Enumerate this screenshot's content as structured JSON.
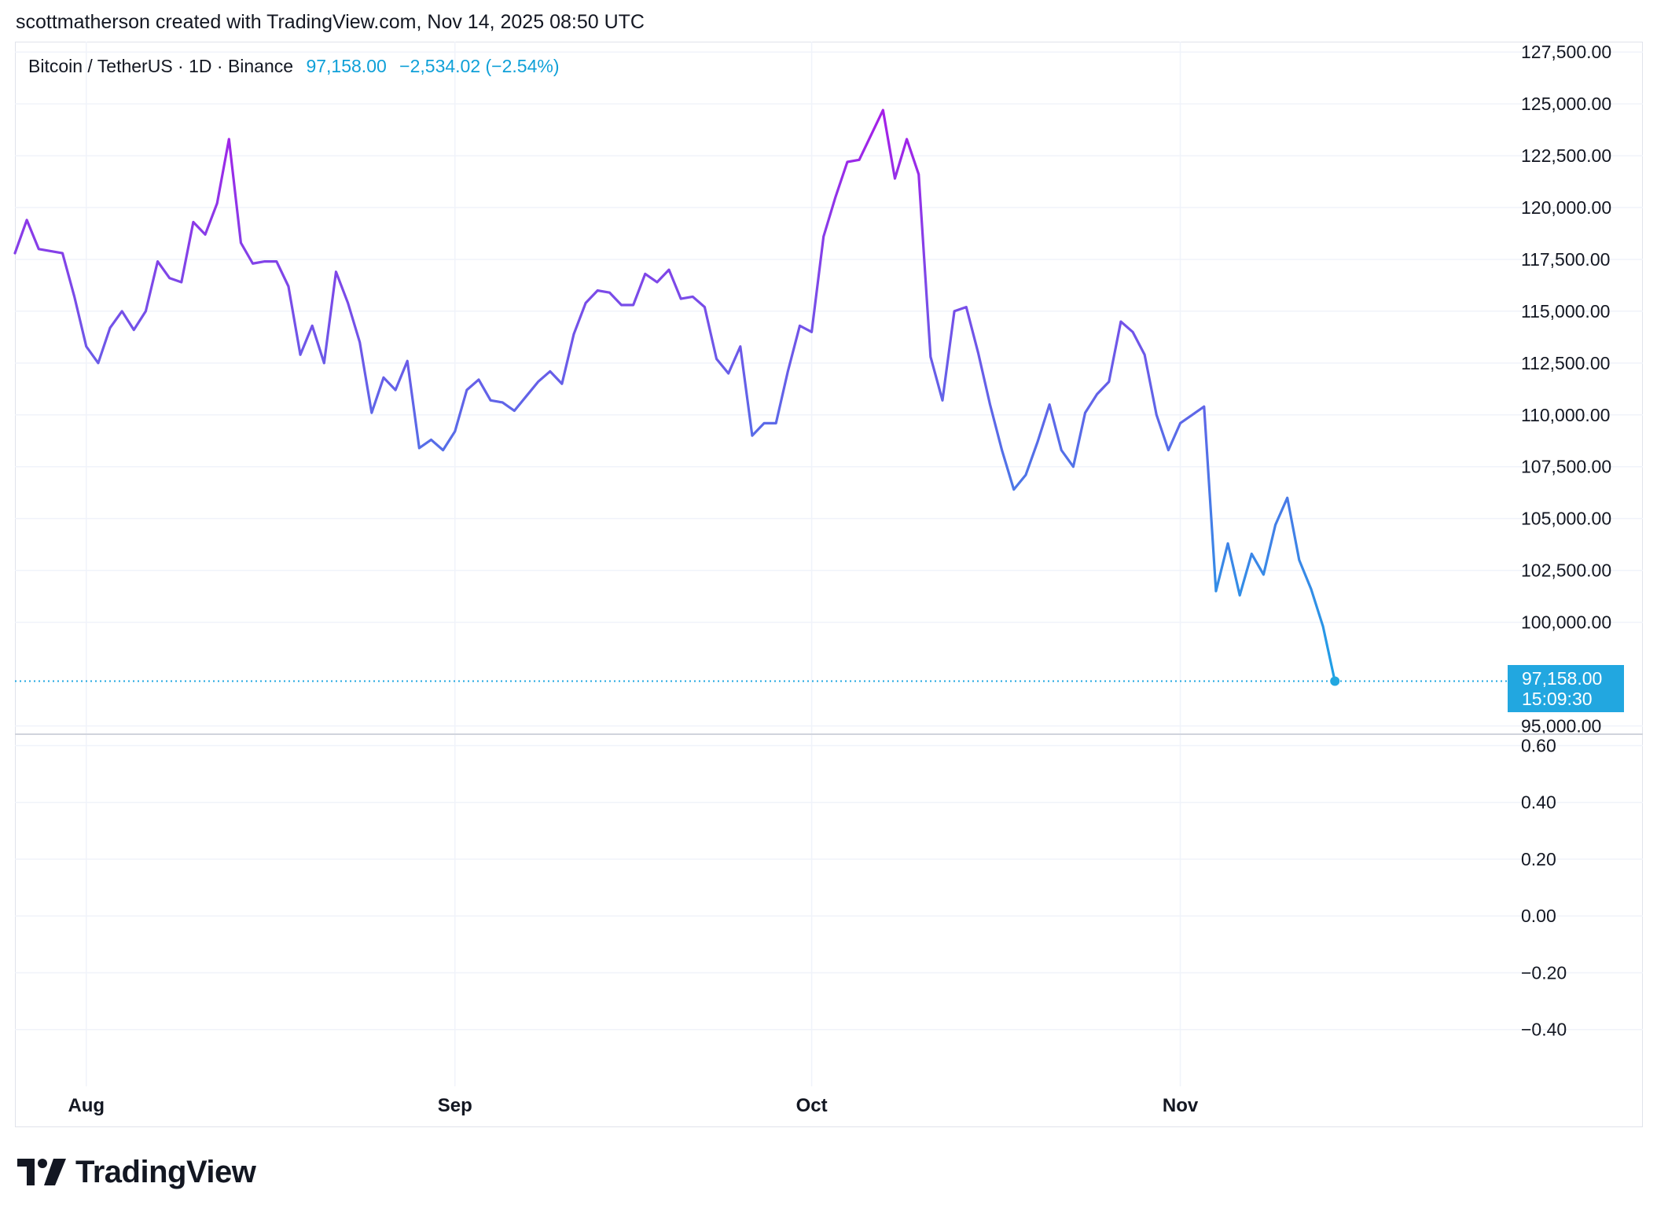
{
  "byline": "scottmatherson created with TradingView.com, Nov 14, 2025 08:50 UTC",
  "legend": {
    "symbol": "Bitcoin / TetherUS · 1D · Binance",
    "last": "97,158.00",
    "change": "−2,534.02 (−2.54%)"
  },
  "price_tag": {
    "price": "97,158.00",
    "countdown": "15:09:30"
  },
  "brand": {
    "name": "TradingView",
    "icon": "tradingview-logo-icon"
  },
  "colors": {
    "line_start": "#a61ee8",
    "line_mid": "#6a5ce8",
    "line_end": "#1ea0e6",
    "last_price": "#22a7e0"
  },
  "chart_data": [
    {
      "type": "line",
      "title": "Bitcoin / TetherUS · 1D · Binance",
      "x_tick_labels": [
        "Aug",
        "Sep",
        "Oct",
        "Nov"
      ],
      "x_tick_dates": [
        "2025-08-01",
        "2025-09-01",
        "2025-10-01",
        "2025-11-01"
      ],
      "x_range": [
        "2025-07-26",
        "2025-11-28"
      ],
      "y_tick_labels": [
        "127,500.00",
        "125,000.00",
        "122,500.00",
        "120,000.00",
        "117,500.00",
        "115,000.00",
        "112,500.00",
        "110,000.00",
        "107,500.00",
        "105,000.00",
        "102,500.00",
        "100,000.00",
        "95,000.00"
      ],
      "ylim": [
        94600,
        128000
      ],
      "grid": true,
      "last_value": 97158,
      "series": [
        {
          "x": [
            "2025-07-26",
            "2025-07-27",
            "2025-07-28",
            "2025-07-29",
            "2025-07-30",
            "2025-07-31",
            "2025-08-01",
            "2025-08-02",
            "2025-08-03",
            "2025-08-04",
            "2025-08-05",
            "2025-08-06",
            "2025-08-07",
            "2025-08-08",
            "2025-08-09",
            "2025-08-10",
            "2025-08-11",
            "2025-08-12",
            "2025-08-13",
            "2025-08-14",
            "2025-08-15",
            "2025-08-16",
            "2025-08-17",
            "2025-08-18",
            "2025-08-19",
            "2025-08-20",
            "2025-08-21",
            "2025-08-22",
            "2025-08-23",
            "2025-08-24",
            "2025-08-25",
            "2025-08-26",
            "2025-08-27",
            "2025-08-28",
            "2025-08-29",
            "2025-08-30",
            "2025-08-31",
            "2025-09-01",
            "2025-09-02",
            "2025-09-03",
            "2025-09-04",
            "2025-09-05",
            "2025-09-06",
            "2025-09-07",
            "2025-09-08",
            "2025-09-09",
            "2025-09-10",
            "2025-09-11",
            "2025-09-12",
            "2025-09-13",
            "2025-09-14",
            "2025-09-15",
            "2025-09-16",
            "2025-09-17",
            "2025-09-18",
            "2025-09-19",
            "2025-09-20",
            "2025-09-21",
            "2025-09-22",
            "2025-09-23",
            "2025-09-24",
            "2025-09-25",
            "2025-09-26",
            "2025-09-27",
            "2025-09-28",
            "2025-09-29",
            "2025-09-30",
            "2025-10-01",
            "2025-10-02",
            "2025-10-03",
            "2025-10-04",
            "2025-10-05",
            "2025-10-06",
            "2025-10-07",
            "2025-10-08",
            "2025-10-09",
            "2025-10-10",
            "2025-10-11",
            "2025-10-12",
            "2025-10-13",
            "2025-10-14",
            "2025-10-15",
            "2025-10-16",
            "2025-10-17",
            "2025-10-18",
            "2025-10-19",
            "2025-10-20",
            "2025-10-21",
            "2025-10-22",
            "2025-10-23",
            "2025-10-24",
            "2025-10-25",
            "2025-10-26",
            "2025-10-27",
            "2025-10-28",
            "2025-10-29",
            "2025-10-30",
            "2025-10-31",
            "2025-11-01",
            "2025-11-02",
            "2025-11-03",
            "2025-11-04",
            "2025-11-05",
            "2025-11-06",
            "2025-11-07",
            "2025-11-08",
            "2025-11-09",
            "2025-11-10",
            "2025-11-11",
            "2025-11-12",
            "2025-11-13",
            "2025-11-14"
          ],
          "y": [
            117800,
            119400,
            118000,
            117900,
            117800,
            115700,
            113300,
            112500,
            114200,
            115000,
            114100,
            115000,
            117400,
            116600,
            116400,
            119300,
            118700,
            120200,
            123300,
            118300,
            117300,
            117400,
            117400,
            116200,
            112900,
            114300,
            112500,
            116900,
            115400,
            113500,
            110100,
            111800,
            111200,
            112600,
            108400,
            108800,
            108300,
            109200,
            111200,
            111700,
            110700,
            110600,
            110200,
            110900,
            111600,
            112100,
            111500,
            113900,
            115400,
            116000,
            115900,
            115300,
            115300,
            116800,
            116400,
            117000,
            115600,
            115700,
            115200,
            112700,
            112000,
            113300,
            109000,
            109600,
            109600,
            112100,
            114300,
            114000,
            118600,
            120500,
            122200,
            122300,
            123500,
            124700,
            121400,
            123300,
            121600,
            112800,
            110700,
            115000,
            115200,
            113000,
            110500,
            108300,
            106400,
            107100,
            108700,
            110500,
            108300,
            107500,
            110100,
            111000,
            111600,
            114500,
            114000,
            112900,
            110000,
            108300,
            109600,
            110000,
            110400,
            101500,
            103800,
            101300,
            103300,
            102300,
            104700,
            106000,
            103000,
            101600,
            99800,
            97158
          ]
        }
      ]
    },
    {
      "type": "line",
      "title": "",
      "y_tick_labels": [
        "0.60",
        "0.40",
        "0.20",
        "0.00",
        "−0.20",
        "−0.40"
      ],
      "ylim": [
        -0.6,
        0.64
      ],
      "grid": true,
      "series": []
    }
  ]
}
